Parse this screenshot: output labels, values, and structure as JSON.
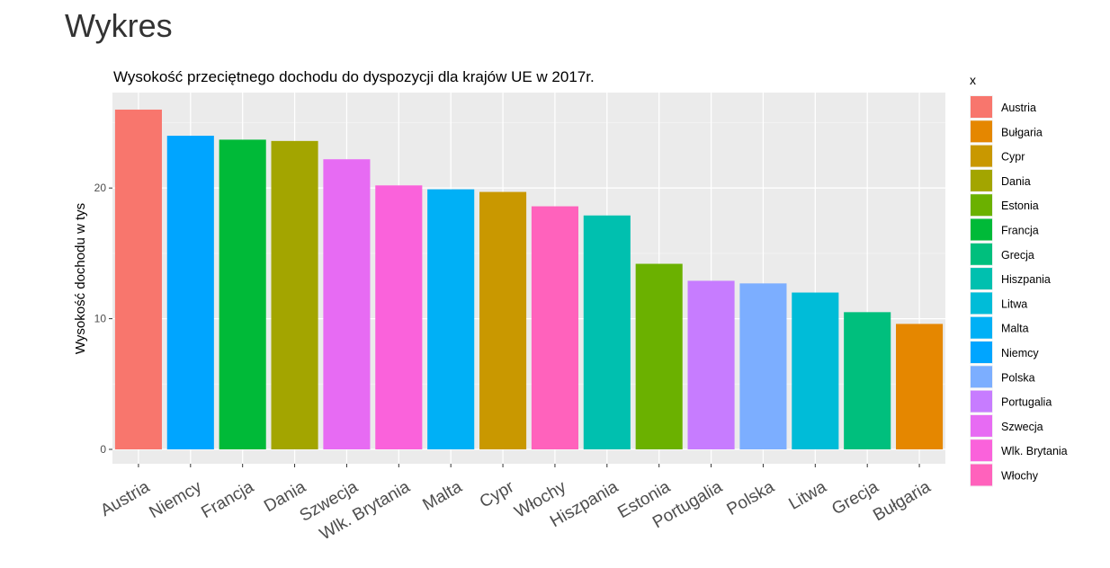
{
  "page": {
    "heading": "Wykres"
  },
  "chart_data": {
    "type": "bar",
    "title": "Wysokość przeciętnego dochodu do dyspozycji dla krajów UE w 2017r.",
    "xlabel": "",
    "ylabel": "Wysokość dochodu w tys",
    "ylim": [
      0,
      26
    ],
    "yticks": [
      0,
      10,
      20
    ],
    "grid": true,
    "legend_title": "x",
    "legend_position": "right",
    "categories": [
      "Austria",
      "Niemcy",
      "Francja",
      "Dania",
      "Szwecja",
      "Wlk. Brytania",
      "Malta",
      "Cypr",
      "Włochy",
      "Hiszpania",
      "Estonia",
      "Portugalia",
      "Polska",
      "Litwa",
      "Grecja",
      "Bułgaria"
    ],
    "values": [
      26.0,
      24.0,
      23.7,
      23.6,
      22.2,
      20.2,
      19.9,
      19.7,
      18.6,
      17.9,
      14.2,
      12.9,
      12.7,
      12.0,
      10.5,
      9.6
    ],
    "colors": {
      "Austria": "#F8766D",
      "Bułgaria": "#E58700",
      "Cypr": "#C99800",
      "Dania": "#A3A500",
      "Estonia": "#6BB100",
      "Francja": "#00BA38",
      "Grecja": "#00BF7D",
      "Hiszpania": "#00C0AF",
      "Litwa": "#00BCD8",
      "Malta": "#00B0F6",
      "Niemcy": "#00A5FF",
      "Polska": "#7CAEFF",
      "Portugalia": "#C77CFF",
      "Szwecja": "#E76BF3",
      "Wlk. Brytania": "#FA62DB",
      "Włochy": "#FF62BC"
    },
    "legend": [
      "Austria",
      "Bułgaria",
      "Cypr",
      "Dania",
      "Estonia",
      "Francja",
      "Grecja",
      "Hiszpania",
      "Litwa",
      "Malta",
      "Niemcy",
      "Polska",
      "Portugalia",
      "Szwecja",
      "Wlk. Brytania",
      "Włochy"
    ]
  }
}
